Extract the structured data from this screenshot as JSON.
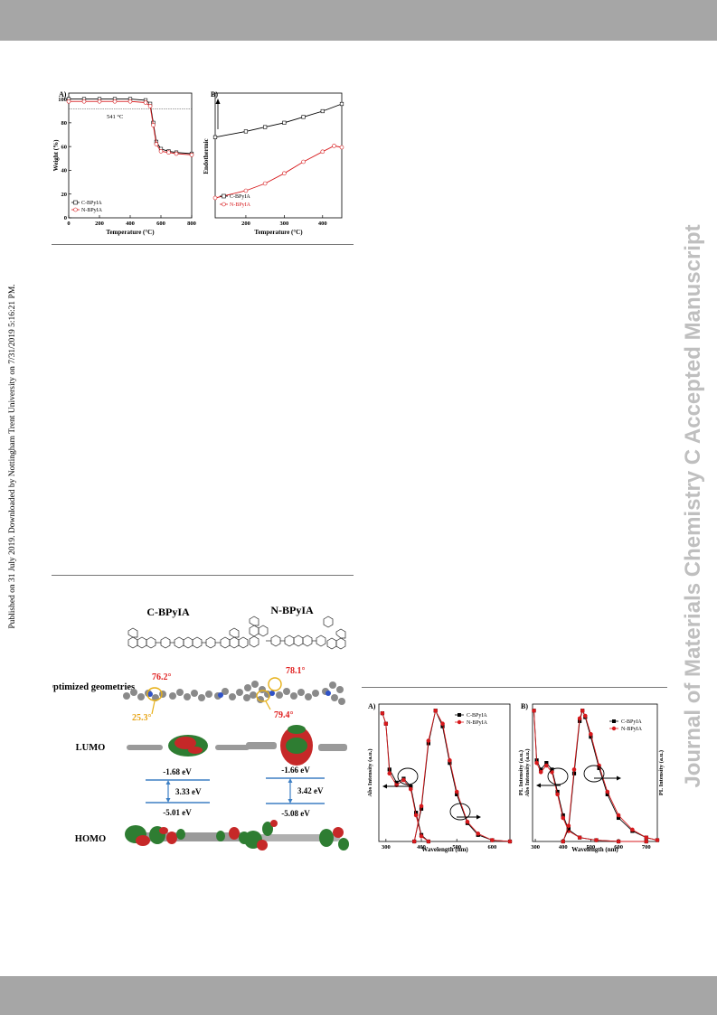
{
  "sidebar_left": "Published on 31 July 2019. Downloaded by Nottingham Trent University on 7/31/2019 5:16:21 PM.",
  "sidebar_right": "Journal of Materials Chemistry C Accepted Manuscript",
  "tga": {
    "panel": "A)",
    "ylabel": "Weight (%)",
    "xlabel": "Temperature (°C)",
    "annotation": "541 °C",
    "yticks": [
      "0",
      "20",
      "40",
      "60",
      "80",
      "100"
    ],
    "xticks": [
      "0",
      "200",
      "400",
      "600",
      "800"
    ]
  },
  "dsc": {
    "panel": "B)",
    "ylabel": "Endothermic",
    "xlabel": "Temperature (°C)",
    "xticks": [
      "200",
      "300",
      "400"
    ]
  },
  "legend": {
    "c": "C-BPyIA",
    "n": "N-BPyIA"
  },
  "colors": {
    "c": "#000000",
    "n": "#d7191c"
  },
  "dft": {
    "title_c": "C-BPyIA",
    "title_n": "N-BPyIA",
    "row_opt": "Optimized geometries",
    "row_lumo": "LUMO",
    "row_homo": "HOMO",
    "c_angle1": "76.2°",
    "c_angle2": "25.3°",
    "n_angle1": "78.1°",
    "n_angle2": "79.4°",
    "c_lumo": "-1.68 eV",
    "c_gap": "3.33 eV",
    "c_homo": "-5.01 eV",
    "n_lumo": "-1.66 eV",
    "n_gap": "3.42 eV",
    "n_homo": "-5.08 eV"
  },
  "abs": {
    "panel": "A)",
    "ylabel": "Abs Intensity (a.u.)",
    "xlabel": "Wavelength (nm)",
    "xticks": [
      "300",
      "400",
      "500",
      "600"
    ]
  },
  "pl": {
    "panel": "B)",
    "ylabel_left1": "PL Intensity (a.u.)",
    "ylabel_left2": "Abs Intensity (a.u.)",
    "ylabel_right": "PL Intensity (a.u.)",
    "xlabel": "Wavelength (nm)",
    "xticks": [
      "300",
      "400",
      "500",
      "600",
      "700"
    ]
  },
  "chart_data": [
    {
      "type": "line",
      "title": "",
      "xlabel": "Temperature (°C)",
      "ylabel": "Weight (%)",
      "xlim": [
        0,
        800
      ],
      "ylim": [
        0,
        105
      ],
      "series": [
        {
          "name": "C-BPyIA",
          "x": [
            0,
            100,
            200,
            300,
            400,
            500,
            530,
            550,
            570,
            600,
            650,
            700,
            800
          ],
          "y": [
            100,
            100,
            100,
            100,
            100,
            99,
            96,
            80,
            64,
            58,
            56,
            55,
            54
          ]
        },
        {
          "name": "N-BPyIA",
          "x": [
            0,
            100,
            200,
            300,
            400,
            500,
            530,
            550,
            570,
            600,
            650,
            700,
            800
          ],
          "y": [
            98,
            98,
            98,
            98,
            98,
            97,
            94,
            78,
            62,
            56,
            55,
            54,
            53
          ]
        }
      ],
      "annotations": [
        "541 °C"
      ]
    },
    {
      "type": "line",
      "title": "",
      "xlabel": "Temperature (°C)",
      "ylabel": "Endothermic",
      "xlim": [
        120,
        450
      ],
      "series": [
        {
          "name": "C-BPyIA",
          "x": [
            120,
            200,
            250,
            300,
            350,
            400,
            450
          ],
          "y": [
            0.72,
            0.76,
            0.79,
            0.82,
            0.86,
            0.9,
            0.95
          ]
        },
        {
          "name": "N-BPyIA",
          "x": [
            120,
            200,
            250,
            300,
            350,
            400,
            430,
            450
          ],
          "y": [
            0.3,
            0.35,
            0.4,
            0.47,
            0.55,
            0.62,
            0.66,
            0.65
          ]
        }
      ]
    },
    {
      "type": "line",
      "title": "",
      "xlabel": "Wavelength (nm)",
      "ylabel": "Abs Intensity (a.u.)",
      "xlim": [
        280,
        650
      ],
      "ylim": [
        0,
        1.05
      ],
      "series": [
        {
          "name": "C-BPyIA Abs",
          "x": [
            290,
            300,
            310,
            330,
            350,
            370,
            385,
            400,
            420
          ],
          "y": [
            0.98,
            0.9,
            0.55,
            0.45,
            0.48,
            0.42,
            0.22,
            0.05,
            0.0
          ]
        },
        {
          "name": "N-BPyIA Abs",
          "x": [
            290,
            300,
            310,
            330,
            350,
            370,
            385,
            400,
            420
          ],
          "y": [
            0.98,
            0.9,
            0.52,
            0.43,
            0.47,
            0.4,
            0.2,
            0.04,
            0.0
          ]
        },
        {
          "name": "C-BPyIA PL",
          "x": [
            380,
            400,
            420,
            440,
            460,
            480,
            500,
            530,
            560,
            600,
            650
          ],
          "y": [
            0.0,
            0.25,
            0.75,
            1.0,
            0.88,
            0.6,
            0.36,
            0.14,
            0.05,
            0.01,
            0.0
          ]
        },
        {
          "name": "N-BPyIA PL",
          "x": [
            380,
            400,
            420,
            440,
            460,
            480,
            500,
            530,
            560,
            600,
            650
          ],
          "y": [
            0.0,
            0.27,
            0.77,
            1.0,
            0.9,
            0.62,
            0.38,
            0.15,
            0.06,
            0.01,
            0.0
          ]
        }
      ]
    },
    {
      "type": "line",
      "title": "",
      "xlabel": "Wavelength (nm)",
      "ylabel": "PL Intensity (a.u.)",
      "xlim": [
        290,
        740
      ],
      "ylim": [
        0,
        1.05
      ],
      "series": [
        {
          "name": "C-BPyIA Abs",
          "x": [
            295,
            305,
            320,
            340,
            360,
            380,
            400,
            420,
            460,
            520,
            600,
            700
          ],
          "y": [
            1.0,
            0.62,
            0.55,
            0.6,
            0.55,
            0.38,
            0.2,
            0.09,
            0.03,
            0.01,
            0.0,
            0.0
          ]
        },
        {
          "name": "N-BPyIA Abs",
          "x": [
            295,
            305,
            320,
            340,
            360,
            380,
            400,
            420,
            460,
            520,
            600,
            700
          ],
          "y": [
            1.0,
            0.6,
            0.53,
            0.58,
            0.53,
            0.36,
            0.18,
            0.08,
            0.03,
            0.01,
            0.0,
            0.0
          ]
        },
        {
          "name": "C-BPyIA PL",
          "x": [
            400,
            420,
            440,
            460,
            470,
            480,
            500,
            530,
            560,
            600,
            650,
            700,
            740
          ],
          "y": [
            0.0,
            0.1,
            0.52,
            0.92,
            1.0,
            0.95,
            0.8,
            0.56,
            0.36,
            0.18,
            0.08,
            0.03,
            0.01
          ]
        },
        {
          "name": "N-BPyIA PL",
          "x": [
            400,
            420,
            440,
            460,
            470,
            480,
            500,
            530,
            560,
            600,
            650,
            700,
            740
          ],
          "y": [
            0.0,
            0.12,
            0.55,
            0.94,
            1.0,
            0.96,
            0.82,
            0.58,
            0.38,
            0.2,
            0.09,
            0.03,
            0.01
          ]
        }
      ]
    }
  ]
}
